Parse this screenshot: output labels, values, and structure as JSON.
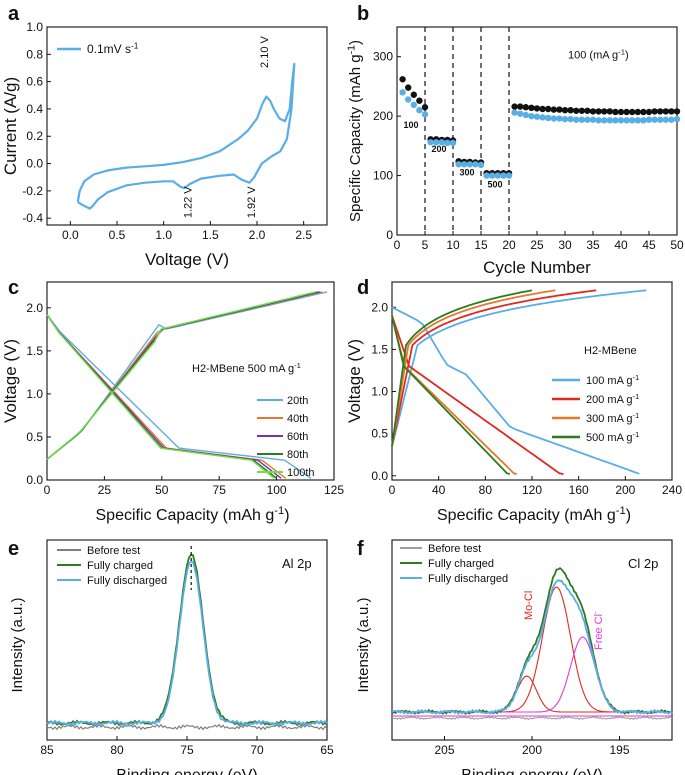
{
  "chart_data": [
    {
      "panel": "a",
      "type": "line",
      "title": "",
      "xlabel": "Voltage (V)",
      "ylabel": "Current (A/g)",
      "xlim": [
        -0.25,
        2.75
      ],
      "ylim": [
        -0.45,
        1.0
      ],
      "xticks": [
        "0.0",
        "0.5",
        "1.0",
        "1.5",
        "2.0",
        "2.5"
      ],
      "xtick_values": [
        0,
        0.5,
        1,
        1.5,
        2,
        2.5
      ],
      "yticks": [
        "-0.4",
        "-0.2",
        "0.0",
        "0.2",
        "0.4",
        "0.6",
        "0.8",
        "1.0"
      ],
      "ytick_values": [
        -0.4,
        -0.2,
        0,
        0.2,
        0.4,
        0.6,
        0.8,
        1.0
      ],
      "legend": {
        "label": "0.1mV s",
        "sup": "-1",
        "position": "top-left"
      },
      "annotations": [
        "2.10 V",
        "1.22 V",
        "1.92 V"
      ],
      "color": "#5aaee6",
      "series": [
        {
          "name": "0.1mV s-1",
          "points": [
            [
              0.08,
              -0.28
            ],
            [
              0.12,
              -0.3
            ],
            [
              0.18,
              -0.32
            ],
            [
              0.21,
              -0.33
            ],
            [
              0.24,
              -0.31
            ],
            [
              0.3,
              -0.26
            ],
            [
              0.4,
              -0.21
            ],
            [
              0.6,
              -0.16
            ],
            [
              0.8,
              -0.14
            ],
            [
              1.0,
              -0.13
            ],
            [
              1.1,
              -0.13
            ],
            [
              1.18,
              -0.17
            ],
            [
              1.22,
              -0.18
            ],
            [
              1.28,
              -0.15
            ],
            [
              1.4,
              -0.11
            ],
            [
              1.6,
              -0.09
            ],
            [
              1.75,
              -0.08
            ],
            [
              1.84,
              -0.12
            ],
            [
              1.92,
              -0.14
            ],
            [
              1.97,
              -0.1
            ],
            [
              2.05,
              0.0
            ],
            [
              2.15,
              0.05
            ],
            [
              2.25,
              0.09
            ],
            [
              2.32,
              0.18
            ],
            [
              2.37,
              0.4
            ],
            [
              2.4,
              0.73
            ],
            [
              2.38,
              0.62
            ],
            [
              2.35,
              0.4
            ],
            [
              2.3,
              0.31
            ],
            [
              2.24,
              0.33
            ],
            [
              2.18,
              0.4
            ],
            [
              2.14,
              0.46
            ],
            [
              2.1,
              0.49
            ],
            [
              2.06,
              0.44
            ],
            [
              2.0,
              0.33
            ],
            [
              1.9,
              0.24
            ],
            [
              1.8,
              0.18
            ],
            [
              1.6,
              0.09
            ],
            [
              1.4,
              0.04
            ],
            [
              1.2,
              0.01
            ],
            [
              1.0,
              -0.01
            ],
            [
              0.8,
              -0.02
            ],
            [
              0.6,
              -0.03
            ],
            [
              0.4,
              -0.05
            ],
            [
              0.25,
              -0.08
            ],
            [
              0.15,
              -0.13
            ],
            [
              0.1,
              -0.2
            ],
            [
              0.08,
              -0.28
            ]
          ]
        }
      ]
    },
    {
      "panel": "b",
      "type": "scatter",
      "xlabel": "Cycle Number",
      "ylabel": "Specific Capacity (mAh g",
      "ylabel_sup": "-1",
      "xlim": [
        0,
        50
      ],
      "ylim": [
        0,
        350
      ],
      "xticks": [
        "0",
        "5",
        "10",
        "15",
        "20",
        "25",
        "30",
        "35",
        "40",
        "45",
        "50"
      ],
      "xtick_values": [
        0,
        5,
        10,
        15,
        20,
        25,
        30,
        35,
        40,
        45,
        50
      ],
      "yticks": [
        "0",
        "100",
        "200",
        "300"
      ],
      "ytick_values": [
        0,
        100,
        200,
        300
      ],
      "dividers": [
        5,
        10,
        15,
        20
      ],
      "rate_labels": [
        {
          "text": "100",
          "x": 2.5,
          "y": 180
        },
        {
          "text": "200",
          "x": 7.5,
          "y": 140
        },
        {
          "text": "300",
          "x": 12.5,
          "y": 100
        },
        {
          "text": "500",
          "x": 17.5,
          "y": 80
        }
      ],
      "annotation": {
        "text": "100 (mA g",
        "sup": "-1",
        "close": ")",
        "x": 35,
        "y": 297
      },
      "series": [
        {
          "name": "charge",
          "color": "#111111",
          "values": [
            262,
            248,
            236,
            226,
            215,
            161,
            161,
            160,
            160,
            159,
            124,
            123,
            123,
            122,
            122,
            104,
            104,
            104,
            104,
            104,
            216,
            216,
            215,
            214,
            213,
            212,
            212,
            211,
            211,
            210,
            210,
            209,
            209,
            209,
            208,
            208,
            208,
            208,
            207,
            207,
            207,
            207,
            207,
            207,
            207,
            208,
            208,
            208,
            208,
            208
          ]
        },
        {
          "name": "discharge",
          "color": "#5aaee6",
          "values": [
            240,
            228,
            219,
            210,
            203,
            156,
            156,
            156,
            155,
            155,
            119,
            119,
            119,
            119,
            118,
            100,
            100,
            100,
            100,
            100,
            206,
            204,
            202,
            200,
            199,
            198,
            197,
            196,
            196,
            195,
            195,
            194,
            194,
            194,
            194,
            193,
            193,
            193,
            193,
            193,
            193,
            193,
            193,
            193,
            194,
            194,
            194,
            194,
            194,
            195
          ]
        }
      ]
    },
    {
      "panel": "c",
      "type": "line",
      "xlabel": "Specific Capacity (mAh g",
      "xlabel_sup": "-1",
      "xlabel_close": ")",
      "ylabel": "Voltage (V)",
      "xlim": [
        0,
        125
      ],
      "ylim": [
        0,
        2.3
      ],
      "xticks": [
        "0",
        "25",
        "50",
        "75",
        "100",
        "125"
      ],
      "xtick_values": [
        0,
        25,
        50,
        75,
        100,
        125
      ],
      "yticks": [
        "0.0",
        "0.5",
        "1.0",
        "1.5",
        "2.0"
      ],
      "ytick_values": [
        0,
        0.5,
        1.0,
        1.5,
        2.0
      ],
      "legend_title": "H2-MBene  500 mA g",
      "legend_title_sup": "-1",
      "series": [
        {
          "name": "20th",
          "color": "#5aaee6",
          "end_charge": 122,
          "end_discharge": 115,
          "shift": 1.12
        },
        {
          "name": "40th",
          "color": "#e8772e",
          "end_charge": 120,
          "end_discharge": 104,
          "shift": 1.04
        },
        {
          "name": "60th",
          "color": "#7a2fb3",
          "end_charge": 119,
          "end_discharge": 102,
          "shift": 1.0
        },
        {
          "name": "80th",
          "color": "#2e7a1f",
          "end_charge": 118,
          "end_discharge": 100,
          "shift": 0.97
        },
        {
          "name": "100th",
          "color": "#6be24a",
          "end_charge": 117,
          "end_discharge": 99,
          "shift": 0.94
        }
      ]
    },
    {
      "panel": "d",
      "type": "line",
      "xlabel": "Specific Capacity (mAh g",
      "xlabel_sup": "-1",
      "xlabel_close": ")",
      "ylabel": "Voltage (V)",
      "xlim": [
        0,
        240
      ],
      "ylim": [
        -0.05,
        2.3
      ],
      "xticks": [
        "0",
        "40",
        "80",
        "120",
        "160",
        "200",
        "240"
      ],
      "xtick_values": [
        0,
        40,
        80,
        120,
        160,
        200,
        240
      ],
      "yticks": [
        "0.0",
        "0.5",
        "1.0",
        "1.5",
        "2.0"
      ],
      "ytick_values": [
        0,
        0.5,
        1.0,
        1.5,
        2.0
      ],
      "legend_title": "H2-MBene",
      "series": [
        {
          "name": "100 mA g",
          "sup": "-1",
          "color": "#5aaee6",
          "end_charge": 218,
          "end_discharge": 212
        },
        {
          "name": "200 mA g",
          "sup": "-1",
          "color": "#e02a1c",
          "end_charge": 175,
          "end_discharge": 147
        },
        {
          "name": "300 mA g",
          "sup": "-1",
          "color": "#e8772e",
          "end_charge": 140,
          "end_discharge": 107
        },
        {
          "name": "500 mA g",
          "sup": "-1",
          "color": "#2e7a1f",
          "end_charge": 120,
          "end_discharge": 101
        }
      ]
    },
    {
      "panel": "e",
      "type": "line",
      "xlabel": "Binding energy (eV)",
      "ylabel": "Intensity (a.u.)",
      "xlim": [
        85,
        65
      ],
      "xticks": [
        "85",
        "80",
        "75",
        "70",
        "65"
      ],
      "xtick_values": [
        85,
        80,
        75,
        70,
        65
      ],
      "peak_label": "Al 2p",
      "peak_center": 74.7,
      "series": [
        {
          "name": "Before test",
          "color": "#7f7f7f"
        },
        {
          "name": "Fully charged",
          "color": "#2e7a1f"
        },
        {
          "name": "Fully discharged",
          "color": "#5aaee6"
        }
      ]
    },
    {
      "panel": "f",
      "type": "line",
      "xlabel": "Binding energy (eV)",
      "ylabel": "Intensity (a.u.)",
      "xlim": [
        208,
        192
      ],
      "xticks": [
        "205",
        "200",
        "195"
      ],
      "xtick_values": [
        205,
        200,
        195
      ],
      "peak_label": "Cl 2p",
      "fit_labels": [
        {
          "text": "Mo-Cl",
          "color": "#e02a1c"
        },
        {
          "text": "Free Cl",
          "sup": "-",
          "color": "#e23ad8"
        }
      ],
      "series": [
        {
          "name": "Before test",
          "color": "#9f9f9f"
        },
        {
          "name": "Fully charged",
          "color": "#2e7a1f"
        },
        {
          "name": "Fully discharged",
          "color": "#5aaee6"
        }
      ]
    }
  ],
  "panel_letters": [
    "a",
    "b",
    "c",
    "d",
    "e",
    "f"
  ]
}
